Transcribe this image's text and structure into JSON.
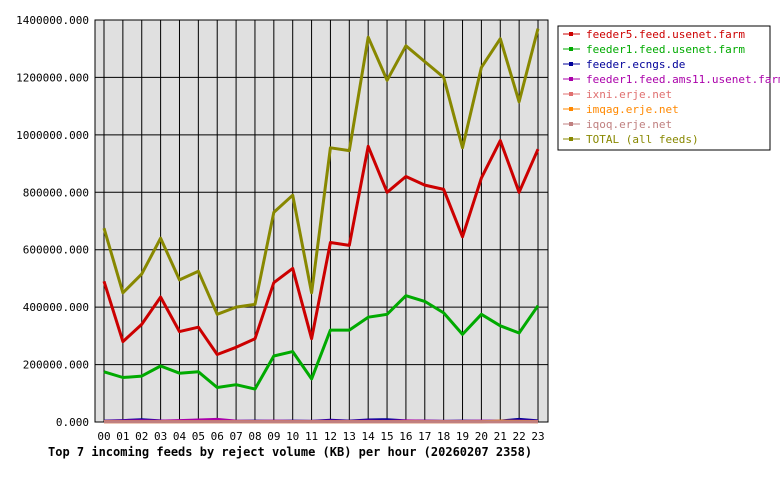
{
  "chart_data": {
    "type": "line",
    "title": "Top 7 incoming feeds by reject volume (KB) per hour (20260207 2358)",
    "xlabel": "",
    "ylabel": "",
    "ylim": [
      0,
      1400000
    ],
    "yticks": [
      "0.000",
      "200000.000",
      "400000.000",
      "600000.000",
      "800000.000",
      "1000000.000",
      "1200000.000",
      "1400000.000"
    ],
    "categories": [
      "00",
      "01",
      "02",
      "03",
      "04",
      "05",
      "06",
      "07",
      "08",
      "09",
      "10",
      "11",
      "12",
      "13",
      "14",
      "15",
      "16",
      "17",
      "18",
      "19",
      "20",
      "21",
      "22",
      "23"
    ],
    "grid": true,
    "legend_position": "right",
    "series": [
      {
        "name": "feeder5.feed.usenet.farm",
        "color": "#cc0000",
        "values": [
          490000,
          280000,
          340000,
          435000,
          315000,
          330000,
          235000,
          260000,
          290000,
          485000,
          535000,
          290000,
          625000,
          615000,
          960000,
          800000,
          855000,
          825000,
          810000,
          645000,
          850000,
          980000,
          800000,
          950000
        ]
      },
      {
        "name": "feeder1.feed.usenet.farm",
        "color": "#00aa00",
        "values": [
          175000,
          155000,
          160000,
          195000,
          170000,
          175000,
          120000,
          130000,
          115000,
          230000,
          245000,
          150000,
          320000,
          320000,
          365000,
          375000,
          440000,
          420000,
          380000,
          305000,
          375000,
          335000,
          310000,
          405000
        ]
      },
      {
        "name": "feeder.ecngs.de",
        "color": "#000099",
        "values": [
          3000,
          5000,
          8000,
          4000,
          3000,
          6000,
          5000,
          2000,
          3000,
          2000,
          3000,
          2000,
          6000,
          3000,
          7000,
          8000,
          4000,
          3000,
          2000,
          3000,
          2000,
          3000,
          9000,
          4000
        ]
      },
      {
        "name": "feeder1.feed.ams11.usenet.farm",
        "color": "#aa00aa",
        "values": [
          2000,
          3000,
          4000,
          3000,
          5000,
          7000,
          9000,
          3000,
          2000,
          3000,
          2000,
          2000,
          3000,
          2000,
          3000,
          2000,
          4000,
          3000,
          2000,
          2000,
          3000,
          2000,
          3000,
          2000
        ]
      },
      {
        "name": "ixni.erje.net",
        "color": "#e07070",
        "values": [
          1000,
          1000,
          1000,
          1000,
          1000,
          1000,
          1000,
          1000,
          1000,
          1000,
          1000,
          1000,
          1000,
          1000,
          1000,
          1000,
          1000,
          1000,
          1000,
          1000,
          1000,
          1000,
          1000,
          1000
        ]
      },
      {
        "name": "imqag.erje.net",
        "color": "#ff8800",
        "values": [
          1000,
          1000,
          1000,
          1000,
          1000,
          1000,
          1000,
          1000,
          1000,
          1000,
          1000,
          1000,
          1000,
          1000,
          1000,
          1000,
          1000,
          1000,
          1000,
          1000,
          1000,
          3000,
          2000,
          1000
        ]
      },
      {
        "name": "iqoq.erje.net",
        "color": "#c08080",
        "values": [
          1000,
          1000,
          1000,
          1000,
          1000,
          1000,
          1000,
          1000,
          1000,
          1000,
          1000,
          1000,
          1000,
          1000,
          1000,
          1000,
          1000,
          1000,
          1000,
          1000,
          1000,
          1000,
          1000,
          1000
        ]
      },
      {
        "name": "TOTAL (all feeds)",
        "color": "#888800",
        "values": [
          675000,
          450000,
          515000,
          640000,
          495000,
          525000,
          375000,
          400000,
          410000,
          730000,
          790000,
          450000,
          955000,
          945000,
          1340000,
          1190000,
          1310000,
          1255000,
          1200000,
          955000,
          1235000,
          1335000,
          1115000,
          1370000
        ]
      }
    ]
  }
}
